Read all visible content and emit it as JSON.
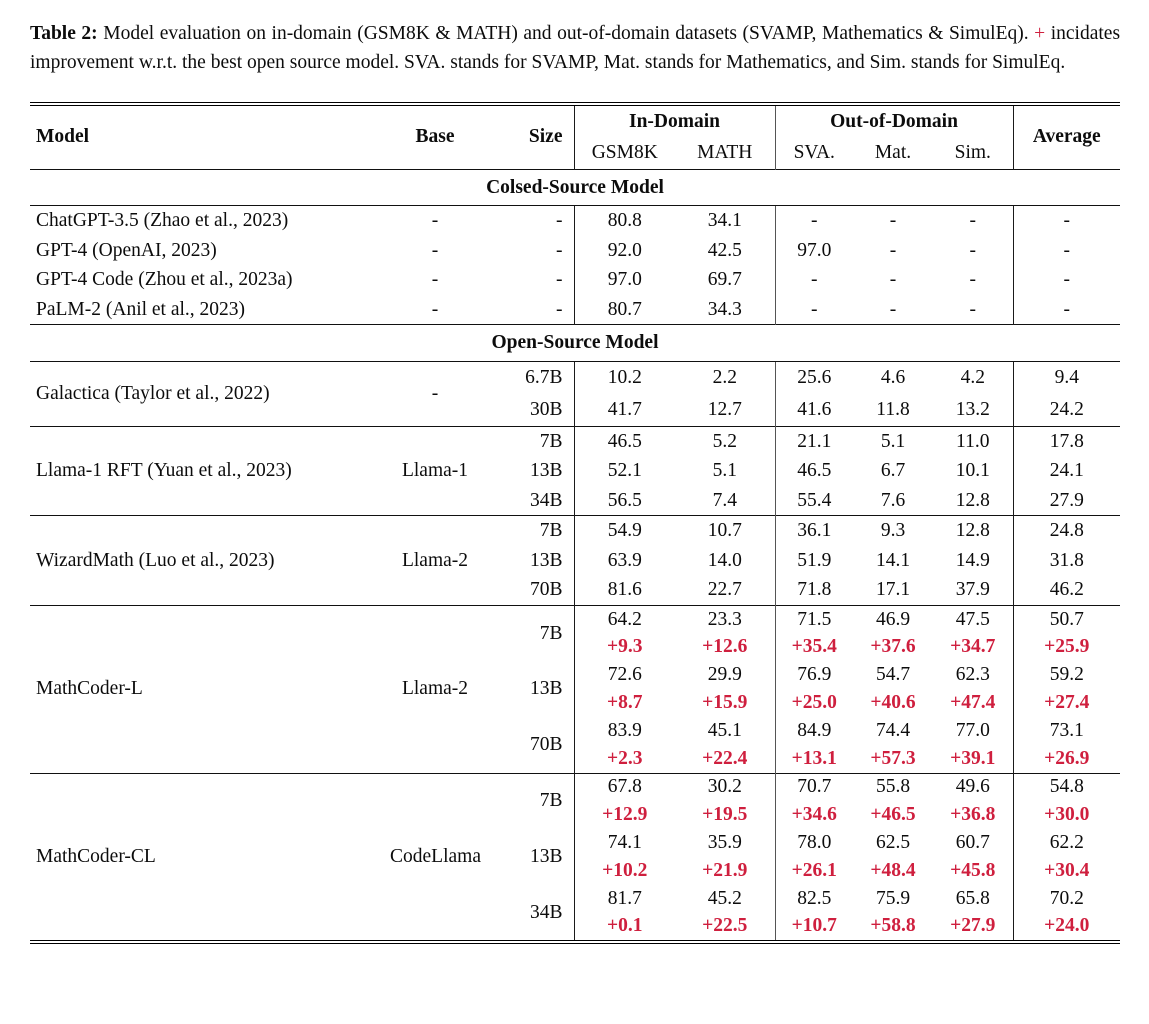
{
  "caption": {
    "label": "Table 2:",
    "text_before_plus": "Model evaluation on in-domain (GSM8K & MATH) and out-of-domain datasets (SVAMP, Mathematics & SimulEq).",
    "plus": "+",
    "text_after_plus": "incidates improvement w.r.t. the best open source model. SVA. stands for SVAMP, Mat. stands for Mathematics, and Sim. stands for SimulEq."
  },
  "colors": {
    "improvement_red": "#cf1f3e",
    "rule_black": "#111111"
  },
  "header": {
    "model": "Model",
    "base": "Base",
    "size": "Size",
    "in_domain": "In-Domain",
    "out_of_domain": "Out-of-Domain",
    "average": "Average",
    "subcolumns": [
      "GSM8K",
      "MATH",
      "SVA.",
      "Mat.",
      "Sim."
    ]
  },
  "sections": [
    {
      "title": "Colsed-Source Model",
      "divided": false,
      "groups": [
        {
          "model": "ChatGPT-3.5 (Zhao et al., 2023)",
          "base": "-",
          "rows": [
            {
              "size": "-",
              "values": [
                "80.8",
                "34.1",
                "-",
                "-",
                "-",
                "-"
              ]
            }
          ]
        },
        {
          "model": "GPT-4 (OpenAI, 2023)",
          "base": "-",
          "rows": [
            {
              "size": "-",
              "values": [
                "92.0",
                "42.5",
                "97.0",
                "-",
                "-",
                "-"
              ]
            }
          ]
        },
        {
          "model": "GPT-4 Code (Zhou et al., 2023a)",
          "base": "-",
          "rows": [
            {
              "size": "-",
              "values": [
                "97.0",
                "69.7",
                "-",
                "-",
                "-",
                "-"
              ]
            }
          ]
        },
        {
          "model": "PaLM-2 (Anil et al., 2023)",
          "base": "-",
          "rows": [
            {
              "size": "-",
              "values": [
                "80.7",
                "34.3",
                "-",
                "-",
                "-",
                "-"
              ]
            }
          ]
        }
      ]
    },
    {
      "title": "Open-Source Model",
      "divided": true,
      "groups": [
        {
          "model": "Galactica (Taylor et al., 2022)",
          "base": "-",
          "rows": [
            {
              "size": "6.7B",
              "values": [
                "10.2",
                "2.2",
                "25.6",
                "4.6",
                "4.2",
                "9.4"
              ]
            },
            {
              "size": "30B",
              "values": [
                "41.7",
                "12.7",
                "41.6",
                "11.8",
                "13.2",
                "24.2"
              ]
            }
          ]
        },
        {
          "model": "Llama-1 RFT (Yuan et al., 2023)",
          "base": "Llama-1",
          "rows": [
            {
              "size": "7B",
              "values": [
                "46.5",
                "5.2",
                "21.1",
                "5.1",
                "11.0",
                "17.8"
              ]
            },
            {
              "size": "13B",
              "values": [
                "52.1",
                "5.1",
                "46.5",
                "6.7",
                "10.1",
                "24.1"
              ]
            },
            {
              "size": "34B",
              "values": [
                "56.5",
                "7.4",
                "55.4",
                "7.6",
                "12.8",
                "27.9"
              ]
            }
          ]
        },
        {
          "model": "WizardMath (Luo et al., 2023)",
          "base": "Llama-2",
          "rows": [
            {
              "size": "7B",
              "values": [
                "54.9",
                "10.7",
                "36.1",
                "9.3",
                "12.8",
                "24.8"
              ]
            },
            {
              "size": "13B",
              "values": [
                "63.9",
                "14.0",
                "51.9",
                "14.1",
                "14.9",
                "31.8"
              ]
            },
            {
              "size": "70B",
              "values": [
                "81.6",
                "22.7",
                "71.8",
                "17.1",
                "37.9",
                "46.2"
              ]
            }
          ]
        },
        {
          "model": "MathCoder-L",
          "base": "Llama-2",
          "rows": [
            {
              "size": "7B",
              "values": [
                "64.2",
                "23.3",
                "71.5",
                "46.9",
                "47.5",
                "50.7"
              ],
              "deltas": [
                "+9.3",
                "+12.6",
                "+35.4",
                "+37.6",
                "+34.7",
                "+25.9"
              ]
            },
            {
              "size": "13B",
              "values": [
                "72.6",
                "29.9",
                "76.9",
                "54.7",
                "62.3",
                "59.2"
              ],
              "deltas": [
                "+8.7",
                "+15.9",
                "+25.0",
                "+40.6",
                "+47.4",
                "+27.4"
              ]
            },
            {
              "size": "70B",
              "values": [
                "83.9",
                "45.1",
                "84.9",
                "74.4",
                "77.0",
                "73.1"
              ],
              "deltas": [
                "+2.3",
                "+22.4",
                "+13.1",
                "+57.3",
                "+39.1",
                "+26.9"
              ]
            }
          ]
        },
        {
          "model": "MathCoder-CL",
          "base": "CodeLlama",
          "rows": [
            {
              "size": "7B",
              "values": [
                "67.8",
                "30.2",
                "70.7",
                "55.8",
                "49.6",
                "54.8"
              ],
              "deltas": [
                "+12.9",
                "+19.5",
                "+34.6",
                "+46.5",
                "+36.8",
                "+30.0"
              ]
            },
            {
              "size": "13B",
              "values": [
                "74.1",
                "35.9",
                "78.0",
                "62.5",
                "60.7",
                "62.2"
              ],
              "deltas": [
                "+10.2",
                "+21.9",
                "+26.1",
                "+48.4",
                "+45.8",
                "+30.4"
              ]
            },
            {
              "size": "34B",
              "values": [
                "81.7",
                "45.2",
                "82.5",
                "75.9",
                "65.8",
                "70.2"
              ],
              "deltas": [
                "+0.1",
                "+22.5",
                "+10.7",
                "+58.8",
                "+27.9",
                "+24.0"
              ]
            }
          ]
        }
      ]
    }
  ]
}
